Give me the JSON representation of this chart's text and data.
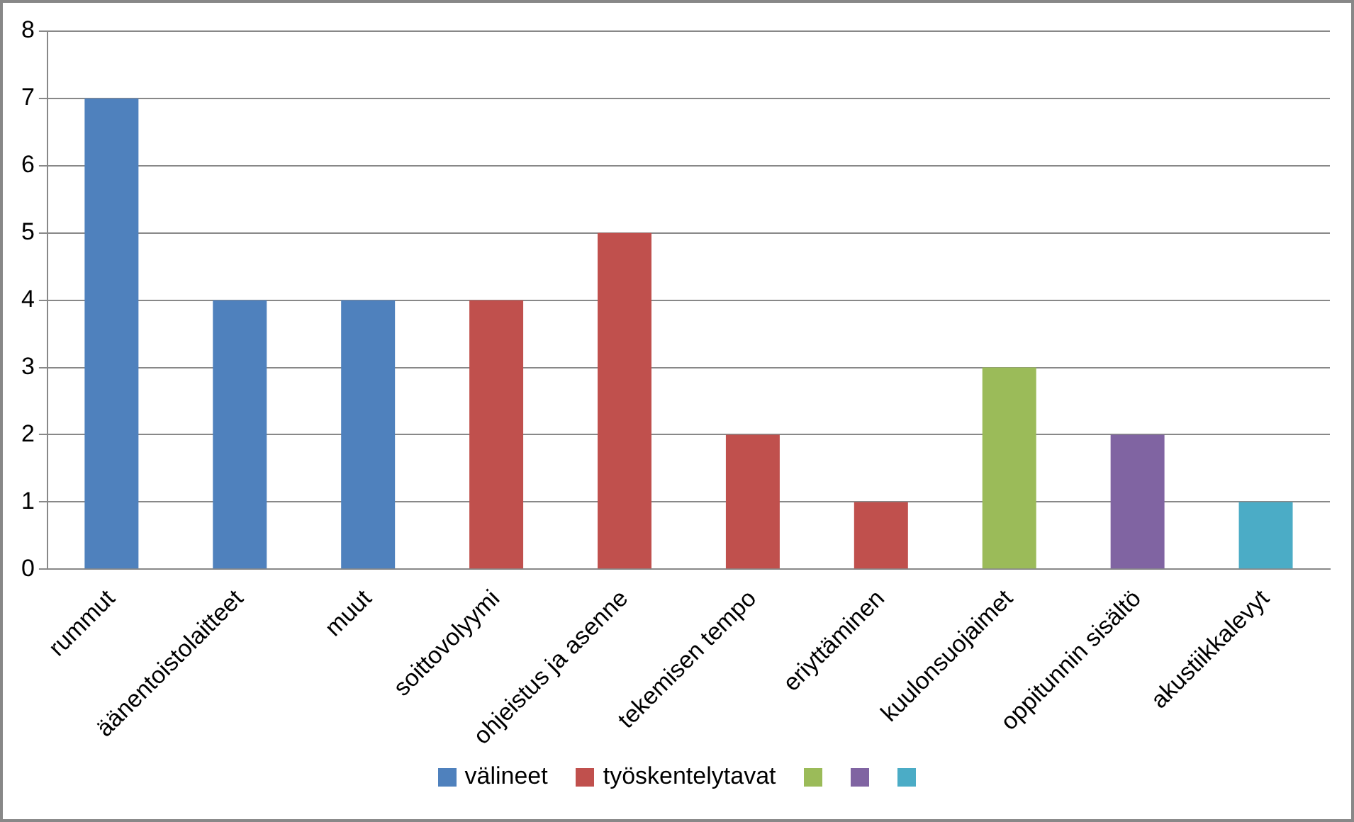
{
  "chart_data": {
    "type": "bar",
    "stacked": true,
    "categories": [
      "rummut",
      "äänentoistolaitteet",
      "muut",
      "soittovolyymi",
      "ohjeistus ja asenne",
      "tekemisen tempo",
      "eriyttäminen",
      "kuulonsuojaimet",
      "oppitunnin sisältö",
      "akustiikkalevyt"
    ],
    "series": [
      {
        "name": "välineet",
        "color": "#4f81bd",
        "values": [
          7,
          4,
          4,
          null,
          null,
          null,
          null,
          null,
          null,
          null
        ]
      },
      {
        "name": "työskentelytavat",
        "color": "#c0504d",
        "values": [
          null,
          null,
          null,
          4,
          5,
          2,
          1,
          null,
          null,
          null
        ]
      },
      {
        "color": "#9bbb59",
        "values": [
          null,
          null,
          null,
          null,
          null,
          null,
          null,
          3,
          null,
          null
        ]
      },
      {
        "color": "#8064a2",
        "values": [
          null,
          null,
          null,
          null,
          null,
          null,
          null,
          null,
          2,
          null
        ]
      },
      {
        "color": "#4bacc6",
        "values": [
          null,
          null,
          null,
          null,
          null,
          null,
          null,
          null,
          null,
          1
        ]
      }
    ],
    "ylim": [
      0,
      8
    ],
    "yticks": [
      0,
      1,
      2,
      3,
      4,
      5,
      6,
      7,
      8
    ],
    "grid": "y",
    "legend": "bottom"
  }
}
